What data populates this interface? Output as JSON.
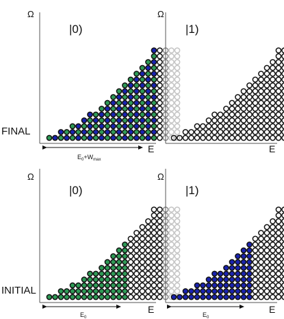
{
  "colors": {
    "green": "#2e9a56",
    "blue": "#1a23b0",
    "black": "#111111",
    "ghost_mid": "#8a8a8a",
    "ghost_light": "#c4c4c4"
  },
  "axis_labels": {
    "vertical": "Ω",
    "horizontal": "E"
  },
  "row_labels": {
    "final": "FINAL",
    "initial": "INITIAL"
  },
  "panels": [
    {
      "id": "final-0",
      "state_label": "|0)",
      "fill_pattern": "checker",
      "filled_columns": 19,
      "column_heights": [
        1,
        1,
        2,
        2,
        3,
        3,
        4,
        5,
        5,
        6,
        7,
        8,
        9,
        10,
        11,
        12,
        13,
        14,
        16,
        16,
        16,
        16,
        16
      ],
      "arrow_label": "E₀+Wₘₐₓ",
      "arrow_label_parts": {
        "base": "E",
        "sub0": "0",
        "plus": "+W",
        "sub1": "max"
      }
    },
    {
      "id": "final-1",
      "state_label": "|1)",
      "fill_pattern": "none",
      "filled_columns": 0,
      "column_heights": [
        1,
        1,
        2,
        2,
        3,
        3,
        4,
        5,
        5,
        6,
        7,
        8,
        9,
        10,
        11,
        12,
        13,
        14,
        16,
        16,
        16,
        16,
        16
      ],
      "arrow_label": ""
    },
    {
      "id": "initial-0",
      "state_label": "|0)",
      "fill_pattern": "green",
      "filled_columns": 14,
      "column_heights": [
        1,
        1,
        2,
        2,
        3,
        3,
        4,
        5,
        5,
        6,
        7,
        8,
        9,
        10,
        11,
        12,
        13,
        14,
        16,
        16,
        16,
        16,
        16
      ],
      "arrow_label": "E₀",
      "arrow_label_parts": {
        "base": "E",
        "sub0": "0"
      }
    },
    {
      "id": "initial-1",
      "state_label": "|1)",
      "fill_pattern": "blue",
      "filled_columns": 14,
      "column_heights": [
        1,
        1,
        2,
        2,
        3,
        3,
        4,
        5,
        5,
        6,
        7,
        8,
        9,
        10,
        11,
        12,
        13,
        14,
        16,
        16,
        16,
        16,
        16
      ],
      "arrow_label": "E₀",
      "arrow_label_parts": {
        "base": "E",
        "sub0": "0"
      }
    }
  ]
}
